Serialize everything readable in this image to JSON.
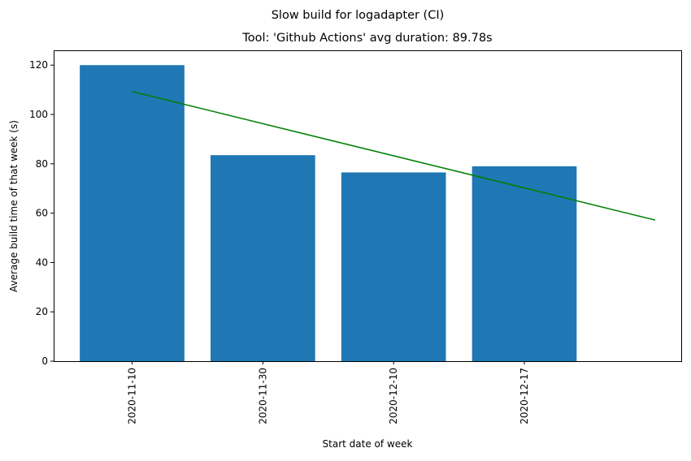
{
  "chart_data": {
    "type": "bar",
    "suptitle": "Slow build for logadapter (CI)",
    "title": "Tool: 'Github Actions' avg duration: 89.78s",
    "xlabel": "Start date of week",
    "ylabel": "Average build time of that week (s)",
    "categories": [
      "2020-11-10",
      "2020-11-30",
      "2020-12-10",
      "2020-12-17"
    ],
    "values": [
      120.0,
      83.5,
      76.5,
      79.0
    ],
    "ylim": [
      0,
      126
    ],
    "yticks": [
      0,
      20,
      40,
      60,
      80,
      100,
      120
    ],
    "trend_line": {
      "color": "#008000",
      "start": {
        "x_index": 0,
        "y": 109.3
      },
      "end": {
        "x_index": 4,
        "y": 57.2
      }
    },
    "colors": {
      "bar": "#1f77b4",
      "trend": "#008000"
    },
    "grid": false,
    "legend": "none"
  }
}
